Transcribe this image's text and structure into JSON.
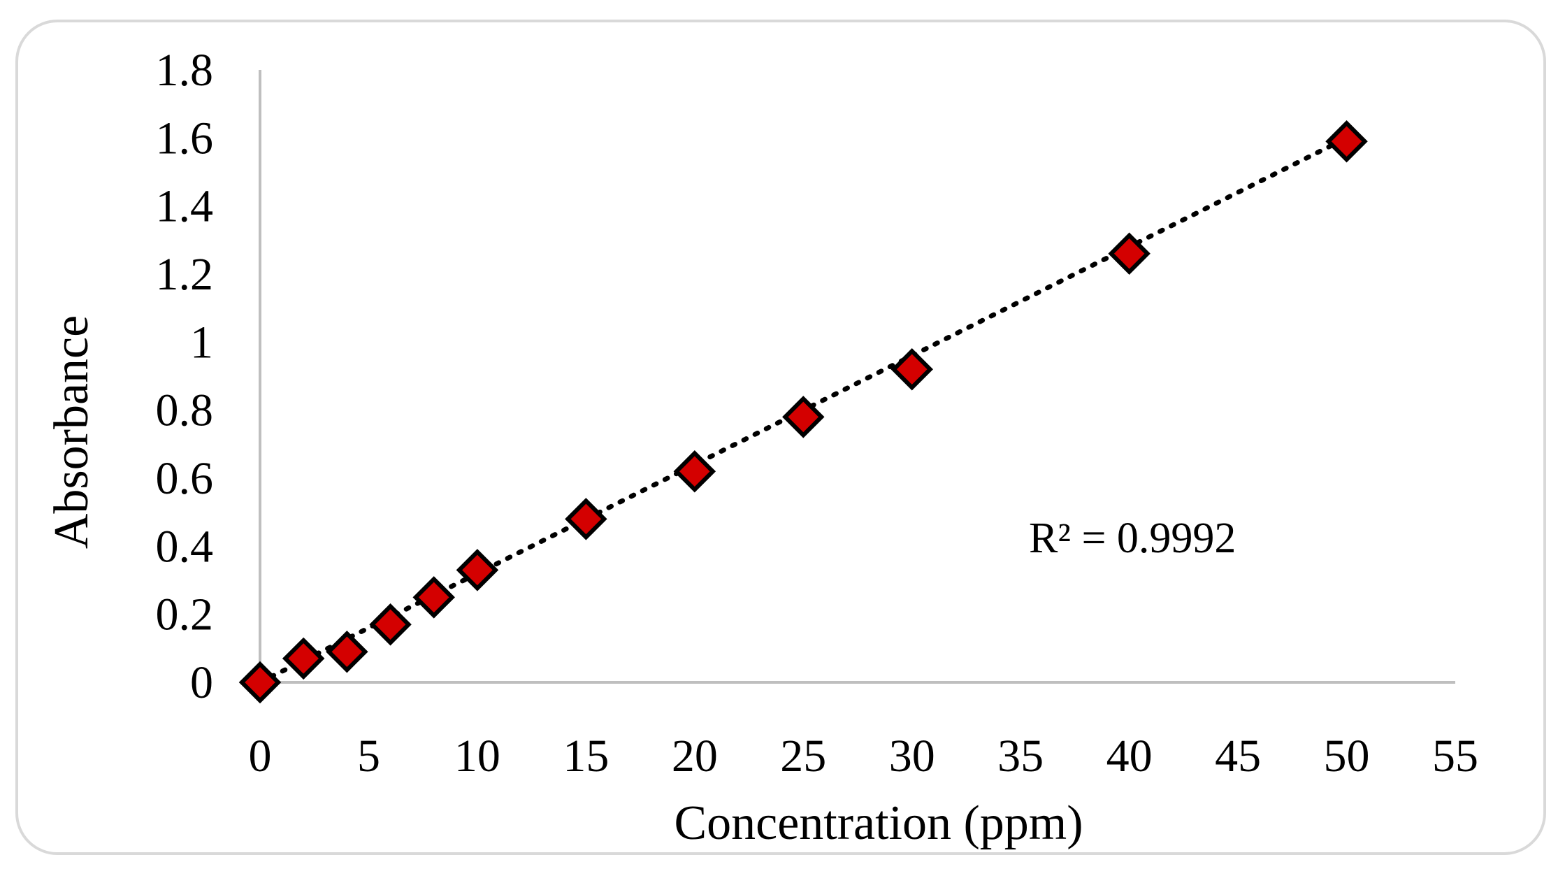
{
  "chart_data": {
    "type": "scatter",
    "title": "",
    "xlabel": "Concentration (ppm)",
    "ylabel": "Absorbance",
    "xlim": [
      0,
      55
    ],
    "ylim": [
      0,
      1.8
    ],
    "x_ticks": [
      "0",
      "5",
      "10",
      "15",
      "20",
      "25",
      "30",
      "35",
      "40",
      "45",
      "50",
      "55"
    ],
    "y_ticks": [
      "0",
      "0.2",
      "0.4",
      "0.6",
      "0.8",
      "1",
      "1.2",
      "1.4",
      "1.6",
      "1.8"
    ],
    "grid": false,
    "series": [
      {
        "name": "Absorbance",
        "marker": "diamond",
        "color": "#d40000",
        "x": [
          0,
          2,
          4,
          6,
          8,
          10,
          15,
          20,
          25,
          30,
          40,
          50
        ],
        "y": [
          0.0,
          0.07,
          0.09,
          0.17,
          0.25,
          0.33,
          0.48,
          0.62,
          0.78,
          0.92,
          1.26,
          1.59
        ]
      }
    ],
    "trendline": {
      "type": "linear",
      "style": "dotted",
      "color": "#000000",
      "x": [
        0,
        50
      ],
      "y": [
        0.0,
        1.6
      ]
    },
    "annotations": [
      {
        "text": "R² = 0.9992"
      }
    ]
  }
}
